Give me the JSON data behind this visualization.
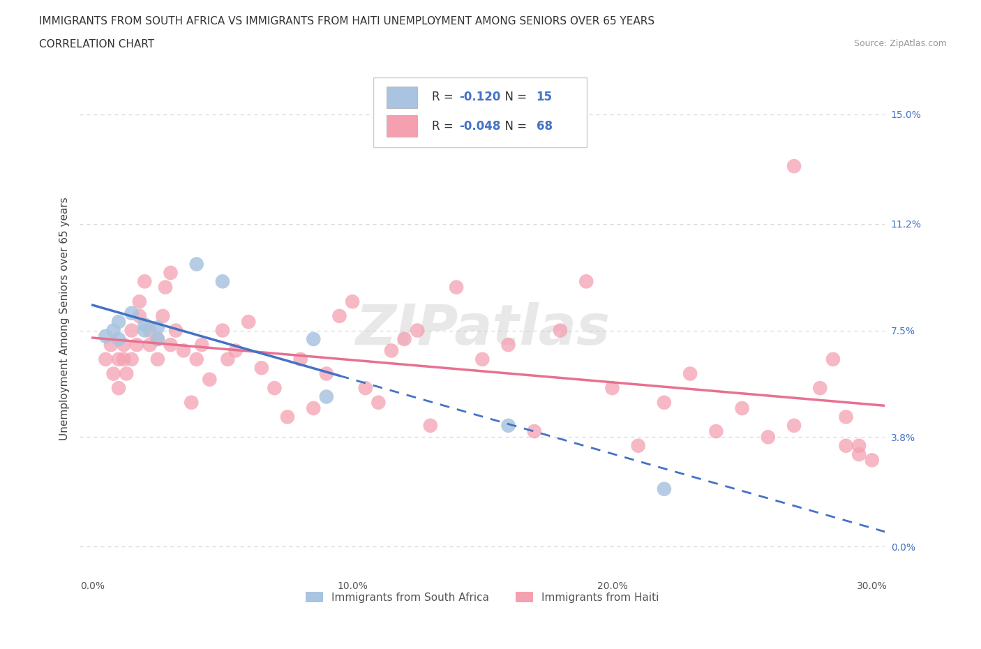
{
  "title_line1": "IMMIGRANTS FROM SOUTH AFRICA VS IMMIGRANTS FROM HAITI UNEMPLOYMENT AMONG SENIORS OVER 65 YEARS",
  "title_line2": "CORRELATION CHART",
  "source_text": "Source: ZipAtlas.com",
  "ylabel": "Unemployment Among Seniors over 65 years",
  "xlim": [
    -0.005,
    0.305
  ],
  "ylim": [
    -0.01,
    0.168
  ],
  "yticks": [
    0.0,
    0.038,
    0.075,
    0.112,
    0.15
  ],
  "ytick_labels": [
    "0.0%",
    "3.8%",
    "7.5%",
    "11.2%",
    "15.0%"
  ],
  "xticks": [
    0.0,
    0.1,
    0.2,
    0.3
  ],
  "xtick_labels": [
    "0.0%",
    "10.0%",
    "20.0%",
    "30.0%"
  ],
  "watermark": "ZIPatlas",
  "south_africa_color": "#a8c4e0",
  "haiti_color": "#f4a0b0",
  "south_africa_line_color": "#4472c4",
  "haiti_line_color": "#e87090",
  "R_sa": -0.12,
  "N_sa": 15,
  "R_haiti": -0.048,
  "N_haiti": 68,
  "sa_x": [
    0.005,
    0.008,
    0.01,
    0.01,
    0.015,
    0.02,
    0.02,
    0.025,
    0.025,
    0.04,
    0.05,
    0.085,
    0.09,
    0.16,
    0.22
  ],
  "sa_y": [
    0.073,
    0.075,
    0.078,
    0.072,
    0.081,
    0.077,
    0.075,
    0.076,
    0.072,
    0.098,
    0.092,
    0.072,
    0.052,
    0.042,
    0.02
  ],
  "haiti_x": [
    0.005,
    0.007,
    0.008,
    0.01,
    0.01,
    0.012,
    0.012,
    0.013,
    0.015,
    0.015,
    0.017,
    0.018,
    0.018,
    0.02,
    0.022,
    0.022,
    0.025,
    0.025,
    0.027,
    0.028,
    0.03,
    0.03,
    0.032,
    0.035,
    0.038,
    0.04,
    0.042,
    0.045,
    0.05,
    0.052,
    0.055,
    0.06,
    0.065,
    0.07,
    0.075,
    0.08,
    0.085,
    0.09,
    0.095,
    0.1,
    0.105,
    0.11,
    0.115,
    0.12,
    0.125,
    0.13,
    0.14,
    0.15,
    0.16,
    0.17,
    0.18,
    0.19,
    0.2,
    0.21,
    0.22,
    0.23,
    0.24,
    0.25,
    0.26,
    0.27,
    0.27,
    0.28,
    0.285,
    0.29,
    0.29,
    0.295,
    0.295,
    0.3
  ],
  "haiti_y": [
    0.065,
    0.07,
    0.06,
    0.055,
    0.065,
    0.07,
    0.065,
    0.06,
    0.075,
    0.065,
    0.07,
    0.085,
    0.08,
    0.092,
    0.07,
    0.075,
    0.065,
    0.072,
    0.08,
    0.09,
    0.095,
    0.07,
    0.075,
    0.068,
    0.05,
    0.065,
    0.07,
    0.058,
    0.075,
    0.065,
    0.068,
    0.078,
    0.062,
    0.055,
    0.045,
    0.065,
    0.048,
    0.06,
    0.08,
    0.085,
    0.055,
    0.05,
    0.068,
    0.072,
    0.075,
    0.042,
    0.09,
    0.065,
    0.07,
    0.04,
    0.075,
    0.092,
    0.055,
    0.035,
    0.05,
    0.06,
    0.04,
    0.048,
    0.038,
    0.042,
    0.132,
    0.055,
    0.065,
    0.045,
    0.035,
    0.035,
    0.032,
    0.03
  ],
  "background_color": "#ffffff",
  "grid_color": "#d8d8d8",
  "title_fontsize": 11,
  "axis_label_fontsize": 11,
  "tick_fontsize": 10
}
